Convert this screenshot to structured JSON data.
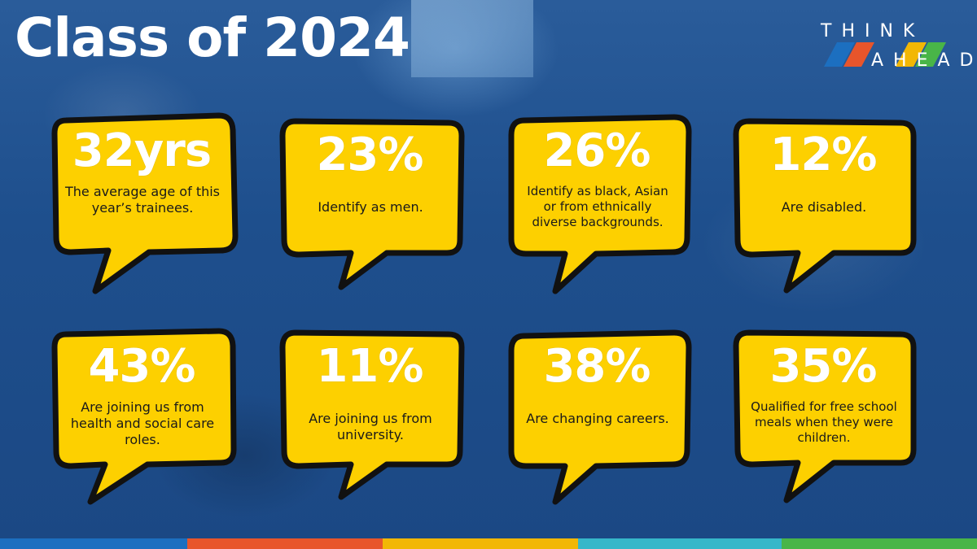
{
  "title": "Class of 2024",
  "logo": {
    "line1": "THINK",
    "line2": "AHEAD"
  },
  "colors": {
    "bubble_fill": "#fdd000",
    "bubble_outline": "#111111",
    "stat_text": "#ffffff",
    "stripe": [
      "#1c6fc0",
      "#e8552b",
      "#f2b705",
      "#36b7c9",
      "#49b548"
    ]
  },
  "stats": [
    {
      "value": "32yrs",
      "description": "The average age of this year’s trainees."
    },
    {
      "value": "23%",
      "description": "Identify as men."
    },
    {
      "value": "26%",
      "description": "Identify as black, Asian or from ethnically diverse backgrounds."
    },
    {
      "value": "12%",
      "description": "Are disabled."
    },
    {
      "value": "43%",
      "description": "Are joining us from health and social care roles."
    },
    {
      "value": "11%",
      "description": "Are joining us from university."
    },
    {
      "value": "38%",
      "description": "Are changing careers."
    },
    {
      "value": "35%",
      "description": "Qualified for free school meals when they were children."
    }
  ]
}
